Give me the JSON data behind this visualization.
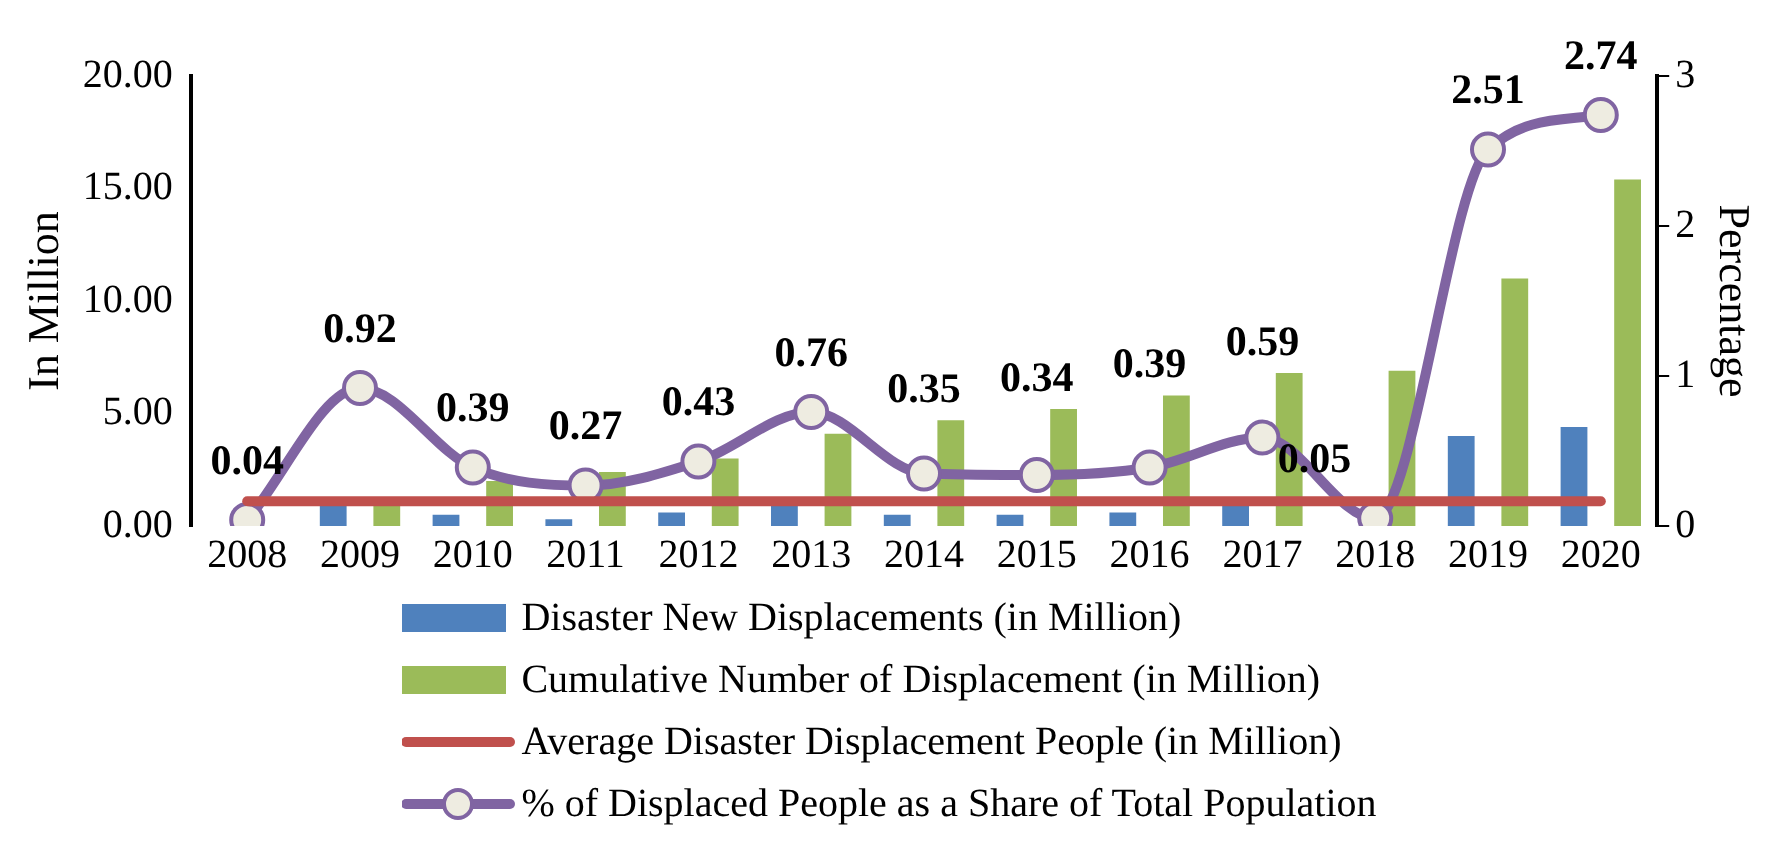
{
  "chart_data": {
    "type": "bar",
    "ylabel": "In Million",
    "y2label": "Percentage",
    "categories": [
      "2008",
      "2009",
      "2010",
      "2011",
      "2012",
      "2013",
      "2014",
      "2015",
      "2016",
      "2017",
      "2018",
      "2019",
      "2020"
    ],
    "series": [
      {
        "name": "Disaster New Displacements (in Million)",
        "color": "#4f81bd",
        "values": [
          0,
          0.9,
          0.5,
          0.3,
          0.6,
          0.9,
          0.5,
          0.5,
          0.6,
          0.9,
          null,
          4.0,
          4.4
        ]
      },
      {
        "name": "Cumulative Number of Displacement (in Million)",
        "color": "#9bbb59",
        "values": [
          0,
          1.0,
          2.0,
          2.4,
          3.0,
          4.1,
          4.7,
          5.2,
          5.8,
          6.8,
          6.9,
          11.0,
          15.4
        ]
      },
      {
        "name": "Average Disaster Displacement People (in Million)",
        "type": "line",
        "color": "#c0504d",
        "marker": "none",
        "values": [
          1.1,
          1.1,
          1.1,
          1.1,
          1.1,
          1.1,
          1.1,
          1.1,
          1.1,
          1.1,
          1.1,
          1.1,
          1.1
        ]
      },
      {
        "name": "% of Displaced People as a Share of Total Population",
        "type": "line",
        "axis": "y2",
        "color": "#8064a2",
        "marker": "circle",
        "values": [
          0.04,
          0.92,
          0.39,
          0.27,
          0.43,
          0.76,
          0.35,
          0.34,
          0.39,
          0.59,
          0.05,
          2.51,
          2.74
        ],
        "value_labels": [
          "0.04",
          "0.92",
          "0.39",
          "0.27",
          "0.43",
          "0.76",
          "0.35",
          "0.34",
          "0.39",
          "0.59",
          "0.05",
          "2.51",
          "2.74"
        ]
      }
    ],
    "ylim": [
      0,
      20
    ],
    "yticks": [
      {
        "value": 0,
        "label": "0.00"
      },
      {
        "value": 5,
        "label": "5.00"
      },
      {
        "value": 10,
        "label": "10.00"
      },
      {
        "value": 15,
        "label": "15.00"
      },
      {
        "value": 20,
        "label": "20.00"
      }
    ],
    "y2lim": [
      0,
      3
    ],
    "y2ticks": [
      0,
      1,
      2,
      3
    ],
    "grid": false,
    "legend": "bottom"
  }
}
